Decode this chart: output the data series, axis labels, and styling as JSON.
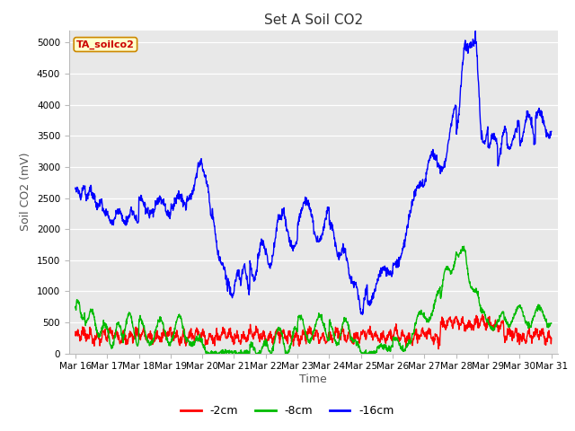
{
  "title": "Set A Soil CO2",
  "ylabel": "Soil CO2 (mV)",
  "xlabel": "Time",
  "legend_label": "TA_soilco2",
  "series_labels": [
    "-2cm",
    "-8cm",
    "-16cm"
  ],
  "series_colors": [
    "#ff0000",
    "#00bb00",
    "#0000ff"
  ],
  "fig_facecolor": "#ffffff",
  "plot_bg_color": "#e8e8e8",
  "ylim": [
    0,
    5200
  ],
  "yticks": [
    0,
    500,
    1000,
    1500,
    2000,
    2500,
    3000,
    3500,
    4000,
    4500,
    5000
  ],
  "x_labels": [
    "Mar 16",
    "Mar 17",
    "Mar 18",
    "Mar 19",
    "Mar 20",
    "Mar 21",
    "Mar 22",
    "Mar 23",
    "Mar 24",
    "Mar 25",
    "Mar 26",
    "Mar 27",
    "Mar 28",
    "Mar 29",
    "Mar 30",
    "Mar 31"
  ],
  "line_width": 1.0,
  "title_fontsize": 11,
  "axis_fontsize": 9,
  "tick_fontsize": 7.5
}
